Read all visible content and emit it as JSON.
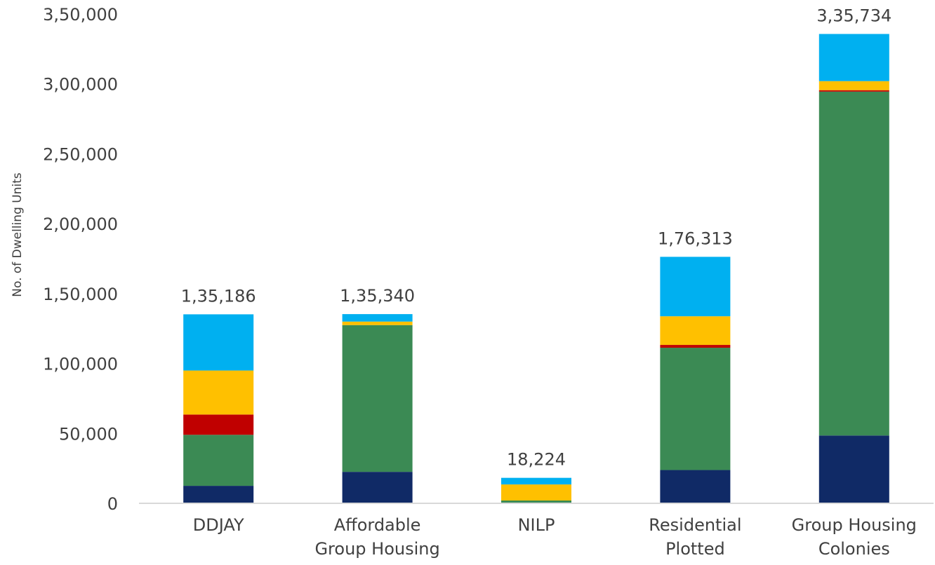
{
  "chart_data": {
    "type": "bar",
    "stacked": true,
    "title": "",
    "xlabel": "",
    "ylabel": "No. of Dwelling Units",
    "ylim": [
      0,
      350000
    ],
    "yticks": [
      0,
      50000,
      100000,
      150000,
      200000,
      250000,
      300000,
      350000
    ],
    "ytick_labels": [
      "0",
      "50,000",
      "1,00,000",
      "1,50,000",
      "2,00,000",
      "2,50,000",
      "3,00,000",
      "3,50,000"
    ],
    "grid": false,
    "legend": "none",
    "categories": [
      [
        "DDJAY"
      ],
      [
        "Affordable",
        "Group Housing"
      ],
      [
        "NILP"
      ],
      [
        "Residential",
        "Plotted"
      ],
      [
        "Group Housing",
        "Colonies"
      ]
    ],
    "totals": [
      135186,
      135340,
      18224,
      176313,
      335734
    ],
    "total_labels": [
      "1,35,186",
      "1,35,340",
      "18,224",
      "1,76,313",
      "3,35,734"
    ],
    "series": [
      {
        "color": "#102A66",
        "values": [
          12500,
          22500,
          0,
          23800,
          48500
        ]
      },
      {
        "color": "#3B8A54",
        "values": [
          36500,
          105000,
          2000,
          87500,
          246000
        ]
      },
      {
        "color": "#C00000",
        "values": [
          14500,
          0,
          0,
          2000,
          1000
        ]
      },
      {
        "color": "#FFC000",
        "values": [
          31500,
          2500,
          11500,
          20500,
          6500
        ]
      },
      {
        "color": "#00B0F0",
        "values": [
          40186,
          5340,
          4724,
          42513,
          33734
        ]
      }
    ]
  }
}
